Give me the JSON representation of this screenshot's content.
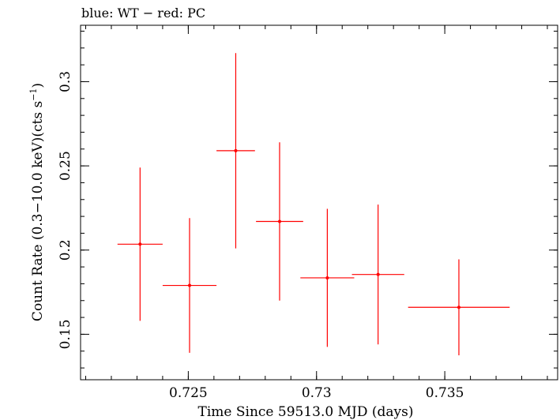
{
  "chart_data": {
    "type": "scatter",
    "title": "blue: WT − red: PC",
    "xlabel": "Time Since 59513.0 MJD (days)",
    "ylabel_main": "Count Rate (0.3−10.0 keV)(cts s",
    "ylabel_sup": "−1",
    "ylabel_close": ")",
    "xlim": [
      0.7208,
      0.7394
    ],
    "ylim": [
      0.123,
      0.3335
    ],
    "x_major_ticks": [
      0.725,
      0.73,
      0.735
    ],
    "x_tick_labels": [
      "0.725",
      "0.73",
      "0.735"
    ],
    "x_minor_step": 0.001,
    "y_major_ticks": [
      0.15,
      0.2,
      0.25,
      0.3
    ],
    "y_tick_labels": [
      "0.15",
      "0.2",
      "0.25",
      "0.3"
    ],
    "y_minor_step": 0.01,
    "grid": false,
    "series": [
      {
        "color": "#ff0000",
        "points": [
          {
            "x": 0.72312,
            "y": 0.2035,
            "xerr": 0.00088,
            "yerr": 0.0455
          },
          {
            "x": 0.72505,
            "y": 0.179,
            "xerr": 0.00105,
            "yerr": 0.04
          },
          {
            "x": 0.72685,
            "y": 0.259,
            "xerr": 0.00075,
            "yerr": 0.058
          },
          {
            "x": 0.72856,
            "y": 0.217,
            "xerr": 0.00092,
            "yerr": 0.047
          },
          {
            "x": 0.73042,
            "y": 0.1835,
            "xerr": 0.00105,
            "yerr": 0.041
          },
          {
            "x": 0.7324,
            "y": 0.1855,
            "xerr": 0.00102,
            "yerr": 0.0415
          },
          {
            "x": 0.73555,
            "y": 0.166,
            "xerr": 0.00198,
            "yerr": 0.0285
          }
        ]
      }
    ]
  }
}
